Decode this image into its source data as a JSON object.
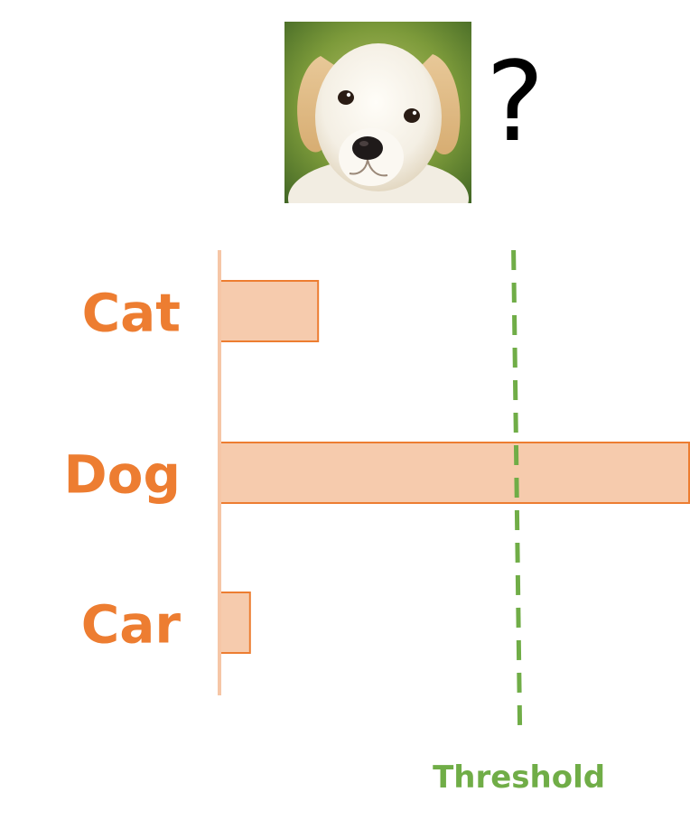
{
  "question_mark": "?",
  "image": {
    "subject": "dog-photo",
    "alt": "Puppy photo"
  },
  "colors": {
    "bar_fill": "#f6cbad",
    "bar_stroke": "#ed7d31",
    "label": "#ed7d31",
    "axis": "#f6c6a6",
    "threshold": "#70ad47"
  },
  "chart_data": {
    "type": "bar",
    "orientation": "horizontal",
    "categories": [
      "Cat",
      "Dog",
      "Car"
    ],
    "values": [
      0.21,
      1.0,
      0.065
    ],
    "xlim": [
      0,
      1.0
    ],
    "threshold": {
      "value": 0.63,
      "label": "Threshold",
      "style": "dashed"
    },
    "title": "",
    "xlabel": "",
    "ylabel": "",
    "grid": false,
    "legend": "none"
  }
}
